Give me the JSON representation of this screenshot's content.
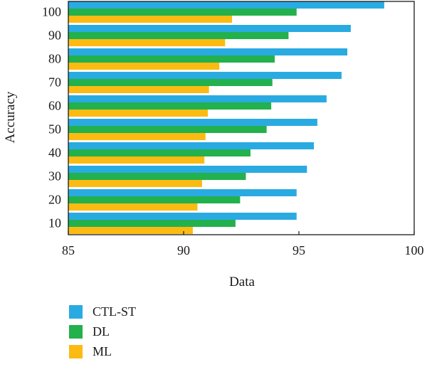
{
  "chart_data": {
    "type": "bar",
    "orientation": "horizontal",
    "title": "",
    "xlabel": "Data",
    "ylabel": "Accuracy",
    "categories": [
      "10",
      "20",
      "30",
      "40",
      "50",
      "60",
      "70",
      "80",
      "90",
      "100"
    ],
    "xlim": [
      85,
      100
    ],
    "xticks": [
      "85",
      "90",
      "95",
      "100"
    ],
    "grid": false,
    "legend_position": "bottom-left",
    "series": [
      {
        "name": "CTL-ST",
        "color": "#29abe2",
        "values": [
          94.9,
          94.9,
          95.35,
          95.65,
          95.8,
          96.2,
          96.85,
          97.1,
          97.25,
          98.7
        ]
      },
      {
        "name": "DL",
        "color": "#22b14c",
        "values": [
          92.25,
          92.45,
          92.7,
          92.9,
          93.6,
          93.8,
          93.85,
          93.95,
          94.55,
          94.9
        ]
      },
      {
        "name": "ML",
        "color": "#fbbb12",
        "values": [
          90.4,
          90.6,
          90.8,
          90.9,
          90.95,
          91.05,
          91.1,
          91.55,
          91.8,
          92.1
        ]
      }
    ]
  }
}
